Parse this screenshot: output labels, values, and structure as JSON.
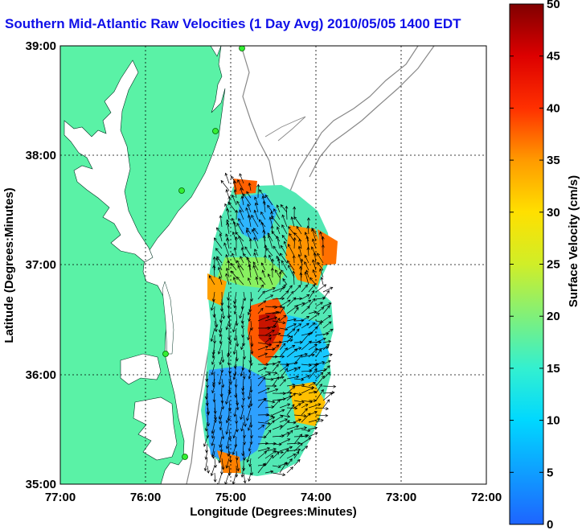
{
  "title": "Southern Mid-Atlantic Raw Velocities (1 Day Avg) 2010/05/05 1400 EDT",
  "map": {
    "xlabel": "Longitude (Degrees:Minutes)",
    "ylabel": "Latitude (Degrees:Minutes)",
    "x_ticks": [
      "77:00",
      "76:00",
      "75:00",
      "74:00",
      "73:00",
      "72:00"
    ],
    "y_ticks": [
      "39:00",
      "38:00",
      "37:00",
      "36:00",
      "35:00"
    ],
    "lon_range": [
      -77,
      -72
    ],
    "lat_range": [
      35,
      39
    ],
    "grid": true,
    "land_color": "#5af2a6",
    "water_color": "#ffffff"
  },
  "colorbar": {
    "label": "Surface Velocity (cm/s)",
    "ticks": [
      "0",
      "5",
      "10",
      "15",
      "20",
      "25",
      "30",
      "35",
      "40",
      "45",
      "50"
    ],
    "range": [
      0,
      50
    ]
  },
  "chart_data": {
    "type": "heatmap",
    "title": "Southern Mid-Atlantic Raw Velocities (1 Day Avg) 2010/05/05 1400 EDT",
    "xlabel": "Longitude (Degrees:Minutes)",
    "ylabel": "Latitude (Degrees:Minutes)",
    "xlim": [
      -77,
      -72
    ],
    "ylim": [
      35,
      39
    ],
    "colorbar_label": "Surface Velocity (cm/s)",
    "colorbar_range": [
      0,
      50
    ]
  }
}
